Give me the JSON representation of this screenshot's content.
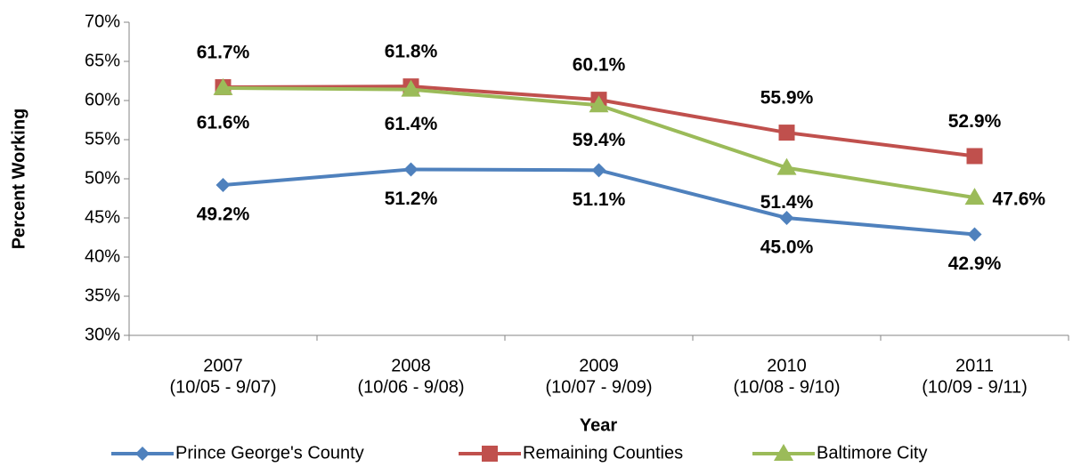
{
  "chart_data": {
    "type": "line",
    "x_label": "Year",
    "y_label": "Percent Working",
    "categories": [
      [
        "2007",
        "(10/05 - 9/07)"
      ],
      [
        "2008",
        "(10/06 - 9/08)"
      ],
      [
        "2009",
        "(10/07 - 9/09)"
      ],
      [
        "2010",
        "(10/08 - 9/10)"
      ],
      [
        "2011",
        "(10/09 - 9/11)"
      ]
    ],
    "ylim": [
      30,
      70
    ],
    "yticks": [
      {
        "value": 30,
        "label": "30%"
      },
      {
        "value": 35,
        "label": "35%"
      },
      {
        "value": 40,
        "label": "40%"
      },
      {
        "value": 45,
        "label": "45%"
      },
      {
        "value": 50,
        "label": "50%"
      },
      {
        "value": 55,
        "label": "55%"
      },
      {
        "value": 60,
        "label": "60%"
      },
      {
        "value": 65,
        "label": "65%"
      },
      {
        "value": 70,
        "label": "70%"
      }
    ],
    "grid": false,
    "legend": "bottom",
    "series": [
      {
        "name": "Prince George's County",
        "color": "#4f81bd",
        "marker": "diamond",
        "values": [
          49.2,
          51.2,
          51.1,
          45.0,
          42.9
        ],
        "value_labels": [
          "49.2%",
          "51.2%",
          "51.1%",
          "45.0%",
          "42.9%"
        ]
      },
      {
        "name": "Remaining Counties",
        "color": "#c0504d",
        "marker": "square",
        "values": [
          61.7,
          61.8,
          60.1,
          55.9,
          52.9
        ],
        "value_labels": [
          "61.7%",
          "61.8%",
          "60.1%",
          "55.9%",
          "52.9%"
        ]
      },
      {
        "name": "Baltimore City",
        "color": "#9bbb59",
        "marker": "triangle",
        "values": [
          61.6,
          61.4,
          59.4,
          51.4,
          47.6
        ],
        "value_labels": [
          "61.6%",
          "61.4%",
          "59.4%",
          "51.4%",
          "47.6%"
        ]
      }
    ]
  }
}
